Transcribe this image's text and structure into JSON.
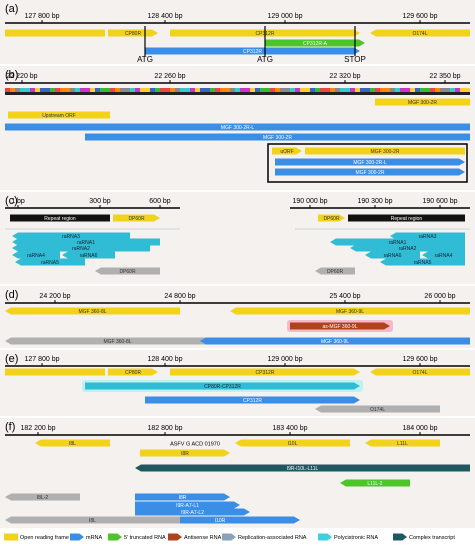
{
  "panels": [
    {
      "label": "(a)",
      "ticks": [
        "127 800 bp",
        "128 400 bp",
        "129 000 bp",
        "129 600 bp"
      ],
      "features": [
        {
          "label": "CP80R"
        },
        {
          "label": "CP312R"
        },
        {
          "label": "O174L"
        },
        {
          "label": "CP312R-A"
        },
        {
          "label": "CP312R"
        }
      ],
      "markers": [
        "ATG",
        "ATG",
        "STOP"
      ]
    },
    {
      "label": "(b)",
      "ticks": [
        "22 220 bp",
        "22 260 bp",
        "22 320 bp",
        "22 350 bp"
      ],
      "features": [
        {
          "label": "MGF 300-2R"
        },
        {
          "label": "Upstream ORF"
        },
        {
          "label": "MGF 300-2R-L"
        },
        {
          "label": "MGF 300-2R"
        },
        {
          "label": "uORF"
        },
        {
          "label": "MGF 300-2R"
        },
        {
          "label": "MGF 300-2R-L"
        },
        {
          "label": "MGF 300-2R"
        }
      ]
    },
    {
      "label": "(c)",
      "ticks": [
        "1 bp",
        "300 bp",
        "600 bp",
        "190 000 bp",
        "190 300 bp",
        "190 600 bp"
      ],
      "features": [
        {
          "label": "Repeat region"
        },
        {
          "label": "DP60R"
        },
        {
          "label": "raRNA3"
        },
        {
          "label": "raRNA1"
        },
        {
          "label": "raRNA2"
        },
        {
          "label": "raRNA4"
        },
        {
          "label": "raRNA6"
        },
        {
          "label": "raRNA5"
        },
        {
          "label": "DP60R"
        },
        {
          "label": "DP60R"
        },
        {
          "label": "Repeat region"
        },
        {
          "label": "raRNA3"
        },
        {
          "label": "raRNA1"
        },
        {
          "label": "raRNA2"
        },
        {
          "label": "raRNA6"
        },
        {
          "label": "raRNA4"
        },
        {
          "label": "raRNA5"
        },
        {
          "label": "DP60R"
        }
      ]
    },
    {
      "label": "(d)",
      "ticks": [
        "24 200 bp",
        "24 800 bp",
        "25 400 bp",
        "26 000 bp"
      ],
      "features": [
        {
          "label": "MGF 360-8L"
        },
        {
          "label": "MGF 360-9L"
        },
        {
          "label": "as-MGF 360-9L"
        },
        {
          "label": "MGF 360-8L"
        },
        {
          "label": "MGF 360-9L"
        }
      ]
    },
    {
      "label": "(e)",
      "ticks": [
        "127 800 bp",
        "128 400 bp",
        "129 000 bp",
        "129 600 bp"
      ],
      "features": [
        {
          "label": "CP80R"
        },
        {
          "label": "CP312R"
        },
        {
          "label": "O174L"
        },
        {
          "label": "CP80R-CP312R"
        },
        {
          "label": "CP312R"
        },
        {
          "label": "O174L"
        }
      ]
    },
    {
      "label": "(f)",
      "ticks": [
        "182 200 bp",
        "182 800 bp",
        "183 400 bp",
        "184 000 bp"
      ],
      "features": [
        {
          "label": "I8L"
        },
        {
          "label": "I8R"
        },
        {
          "label": "I10L"
        },
        {
          "label": "L11L"
        },
        {
          "label": "I9R-I10L-L11L"
        },
        {
          "label": "L11L-2"
        },
        {
          "label": "I8L-2"
        },
        {
          "label": "I8R"
        },
        {
          "label": "I9R-A7-L1"
        },
        {
          "label": "I9R-A7-L2"
        },
        {
          "label": "I10R"
        },
        {
          "label": "I8L"
        }
      ],
      "annotation": "ASFV G ACD 01970"
    }
  ],
  "legend": [
    "Open reading frame",
    "mRNA",
    "5' truncated RNA",
    "Antisense RNA",
    "Replication-associated RNA",
    "Polycistronic RNA",
    "Complex transcript"
  ]
}
